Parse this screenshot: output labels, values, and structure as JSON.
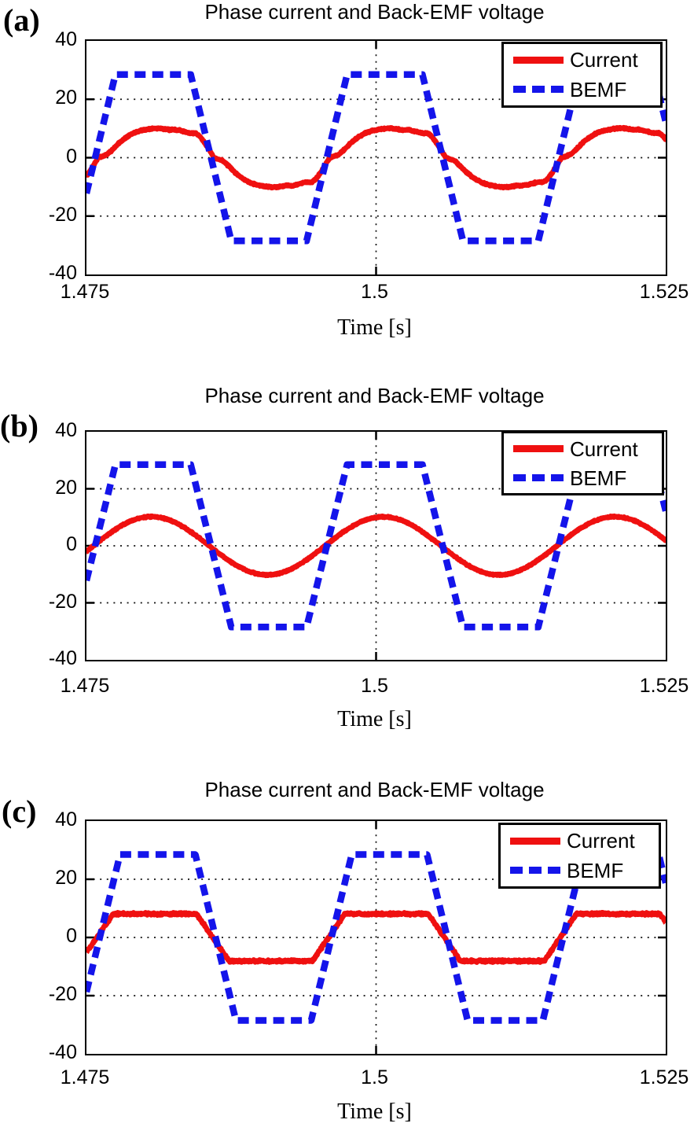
{
  "figure": {
    "background": "#ffffff",
    "panels": [
      "(a)",
      "(b)",
      "(c)"
    ]
  },
  "chart_data": [
    {
      "panel": "(a)",
      "type": "line",
      "title": "Phase current and Back-EMF voltage",
      "xlabel": "Time [s]",
      "x_range": [
        1.475,
        1.525
      ],
      "y_range": [
        -40,
        40
      ],
      "x_ticks": [
        1.475,
        1.5,
        1.525
      ],
      "y_ticks": [
        40,
        20,
        0,
        -20,
        -40
      ],
      "grid": {
        "horizontal_at": [
          20,
          0,
          -20
        ],
        "vertical_at": [
          1.5
        ],
        "style": "dotted"
      },
      "legend_position": "top-right",
      "series": [
        {
          "name": "Current",
          "color": "#ef1010",
          "line": "solid",
          "width": 6.5,
          "model": {
            "kind": "periodic_shape",
            "period": 0.02,
            "t0": 1.476,
            "noise": 0.35,
            "half_shape": [
              [
                0,
                0
              ],
              [
                0.02,
                0.5
              ],
              [
                0.04,
                1.1
              ],
              [
                0.06,
                2.6
              ],
              [
                0.09,
                5.0
              ],
              [
                0.12,
                6.9
              ],
              [
                0.15,
                8.3
              ],
              [
                0.18,
                9.2
              ],
              [
                0.21,
                9.7
              ],
              [
                0.24,
                10.0
              ],
              [
                0.265,
                10.1
              ],
              [
                0.29,
                9.8
              ],
              [
                0.31,
                9.5
              ],
              [
                0.33,
                9.6
              ],
              [
                0.35,
                9.4
              ],
              [
                0.37,
                9.0
              ],
              [
                0.39,
                8.5
              ],
              [
                0.405,
                8.3
              ],
              [
                0.42,
                8.5
              ],
              [
                0.44,
                7.3
              ],
              [
                0.46,
                5.2
              ],
              [
                0.48,
                2.7
              ],
              [
                0.5,
                0
              ]
            ]
          }
        },
        {
          "name": "BEMF",
          "color": "#1414ea",
          "line": "dashed",
          "width": 8.5,
          "model": {
            "kind": "trapezoid",
            "amplitude": 28.5,
            "period": 0.02,
            "rise_start": 1.474,
            "rise_time": 0.0035,
            "plateau": 0.0065,
            "noise": 0
          }
        }
      ]
    },
    {
      "panel": "(b)",
      "type": "line",
      "title": "Phase current and Back-EMF voltage",
      "xlabel": "Time [s]",
      "x_range": [
        1.475,
        1.525
      ],
      "y_range": [
        -40,
        40
      ],
      "x_ticks": [
        1.475,
        1.5,
        1.525
      ],
      "y_ticks": [
        40,
        20,
        0,
        -20,
        -40
      ],
      "grid": {
        "horizontal_at": [
          20,
          0,
          -20
        ],
        "vertical_at": [
          1.5
        ],
        "style": "dotted"
      },
      "legend_position": "top-right",
      "series": [
        {
          "name": "Current",
          "color": "#ef1010",
          "line": "solid",
          "width": 6.5,
          "model": {
            "kind": "sine",
            "amplitude": 10.2,
            "period": 0.02,
            "t0": 1.4756,
            "noise": 0.3
          }
        },
        {
          "name": "BEMF",
          "color": "#1414ea",
          "line": "dashed",
          "width": 8.5,
          "model": {
            "kind": "trapezoid",
            "amplitude": 28.5,
            "period": 0.02,
            "rise_start": 1.474,
            "rise_time": 0.0035,
            "plateau": 0.0065,
            "noise": 0
          }
        }
      ]
    },
    {
      "panel": "(c)",
      "type": "line",
      "title": "Phase current and Back-EMF voltage",
      "xlabel": "Time [s]",
      "x_range": [
        1.475,
        1.525
      ],
      "y_range": [
        -40,
        40
      ],
      "x_ticks": [
        1.475,
        1.5,
        1.525
      ],
      "y_ticks": [
        40,
        20,
        0,
        -20,
        -40
      ],
      "grid": {
        "horizontal_at": [
          20,
          0,
          -20
        ],
        "vertical_at": [
          1.5
        ],
        "style": "dotted"
      },
      "legend_position": "top-right",
      "series": [
        {
          "name": "Current",
          "color": "#ef1010",
          "line": "solid",
          "width": 6.5,
          "model": {
            "kind": "trapezoid",
            "amplitude": 8.1,
            "period": 0.02,
            "rise_start": 1.4745,
            "rise_time": 0.0028,
            "plateau": 0.0072,
            "noise": 0.5
          }
        },
        {
          "name": "BEMF",
          "color": "#1414ea",
          "line": "dashed",
          "width": 8.5,
          "model": {
            "kind": "trapezoid",
            "amplitude": 28.5,
            "period": 0.02,
            "rise_start": 1.4744,
            "rise_time": 0.0035,
            "plateau": 0.0065,
            "noise": 0
          }
        }
      ]
    }
  ]
}
